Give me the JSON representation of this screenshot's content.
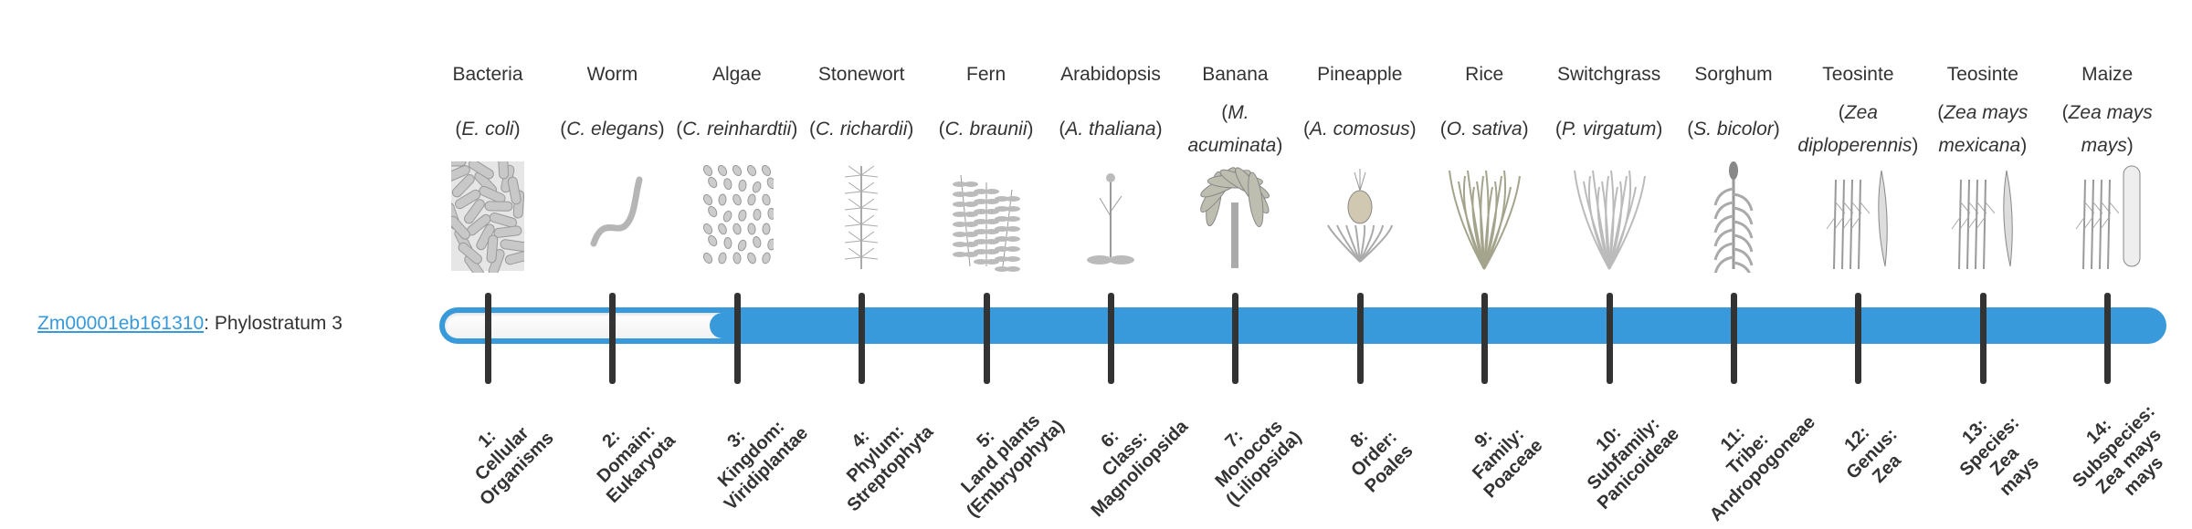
{
  "gene": {
    "id": "Zm00001eb161310",
    "separator": ": ",
    "stratum_text": "Phylostratum 3"
  },
  "progress": {
    "current_stratum": 3,
    "total_strata": 14
  },
  "colors": {
    "accent": "#3899db",
    "tick": "#333333",
    "text": "#333333"
  },
  "strata": [
    {
      "common": "Bacteria",
      "sci": "E. coli",
      "icon": "bacteria-icon",
      "label": [
        "1:",
        "Cellular",
        "Organisms"
      ]
    },
    {
      "common": "Worm",
      "sci": "C. elegans",
      "icon": "worm-icon",
      "label": [
        "2:",
        "Domain:",
        "Eukaryota"
      ]
    },
    {
      "common": "Algae",
      "sci": "C. reinhardtii",
      "icon": "algae-icon",
      "label": [
        "3:",
        "Kingdom:",
        "Viridiplantae"
      ]
    },
    {
      "common": "Stonewort",
      "sci": "C. richardii",
      "icon": "stonewort-icon",
      "label": [
        "4:",
        "Phylum:",
        "Streptophyta"
      ]
    },
    {
      "common": "Fern",
      "sci": "C. braunii",
      "icon": "fern-icon",
      "label": [
        "5:",
        "Land plants",
        "(Embryophyta)"
      ]
    },
    {
      "common": "Arabidopsis",
      "sci": "A. thaliana",
      "icon": "arabidopsis-icon",
      "label": [
        "6:",
        "Class:",
        "Magnoliopsida"
      ]
    },
    {
      "common": "Banana",
      "sci": "M. acuminata",
      "icon": "banana-icon",
      "label": [
        "7:",
        "Monocots",
        "(Liliopsida)"
      ]
    },
    {
      "common": "Pineapple",
      "sci": "A. comosus",
      "icon": "pineapple-icon",
      "label": [
        "8:",
        "Order:",
        "Poales"
      ]
    },
    {
      "common": "Rice",
      "sci": "O. sativa",
      "icon": "rice-icon",
      "label": [
        "9:",
        "Family:",
        "Poaceae"
      ]
    },
    {
      "common": "Switchgrass",
      "sci": "P. virgatum",
      "icon": "switchgrass-icon",
      "label": [
        "10:",
        "Subfamily:",
        "Panicoideae"
      ]
    },
    {
      "common": "Sorghum",
      "sci": "S. bicolor",
      "icon": "sorghum-icon",
      "label": [
        "11:",
        "Tribe:",
        "Andropogoneae"
      ]
    },
    {
      "common": "Teosinte",
      "sci": "Zea diploperennis",
      "icon": "teosinte-icon",
      "label": [
        "12:",
        "Genus:",
        "Zea"
      ]
    },
    {
      "common": "Teosinte",
      "sci": "Zea mays mexicana",
      "icon": "teosinte-icon",
      "label": [
        "13:",
        "Species:",
        "Zea",
        "mays"
      ]
    },
    {
      "common": "Maize",
      "sci": "Zea mays mays",
      "icon": "maize-icon",
      "label": [
        "14:",
        "Subspecies:",
        "Zea mays",
        "mays"
      ]
    }
  ]
}
